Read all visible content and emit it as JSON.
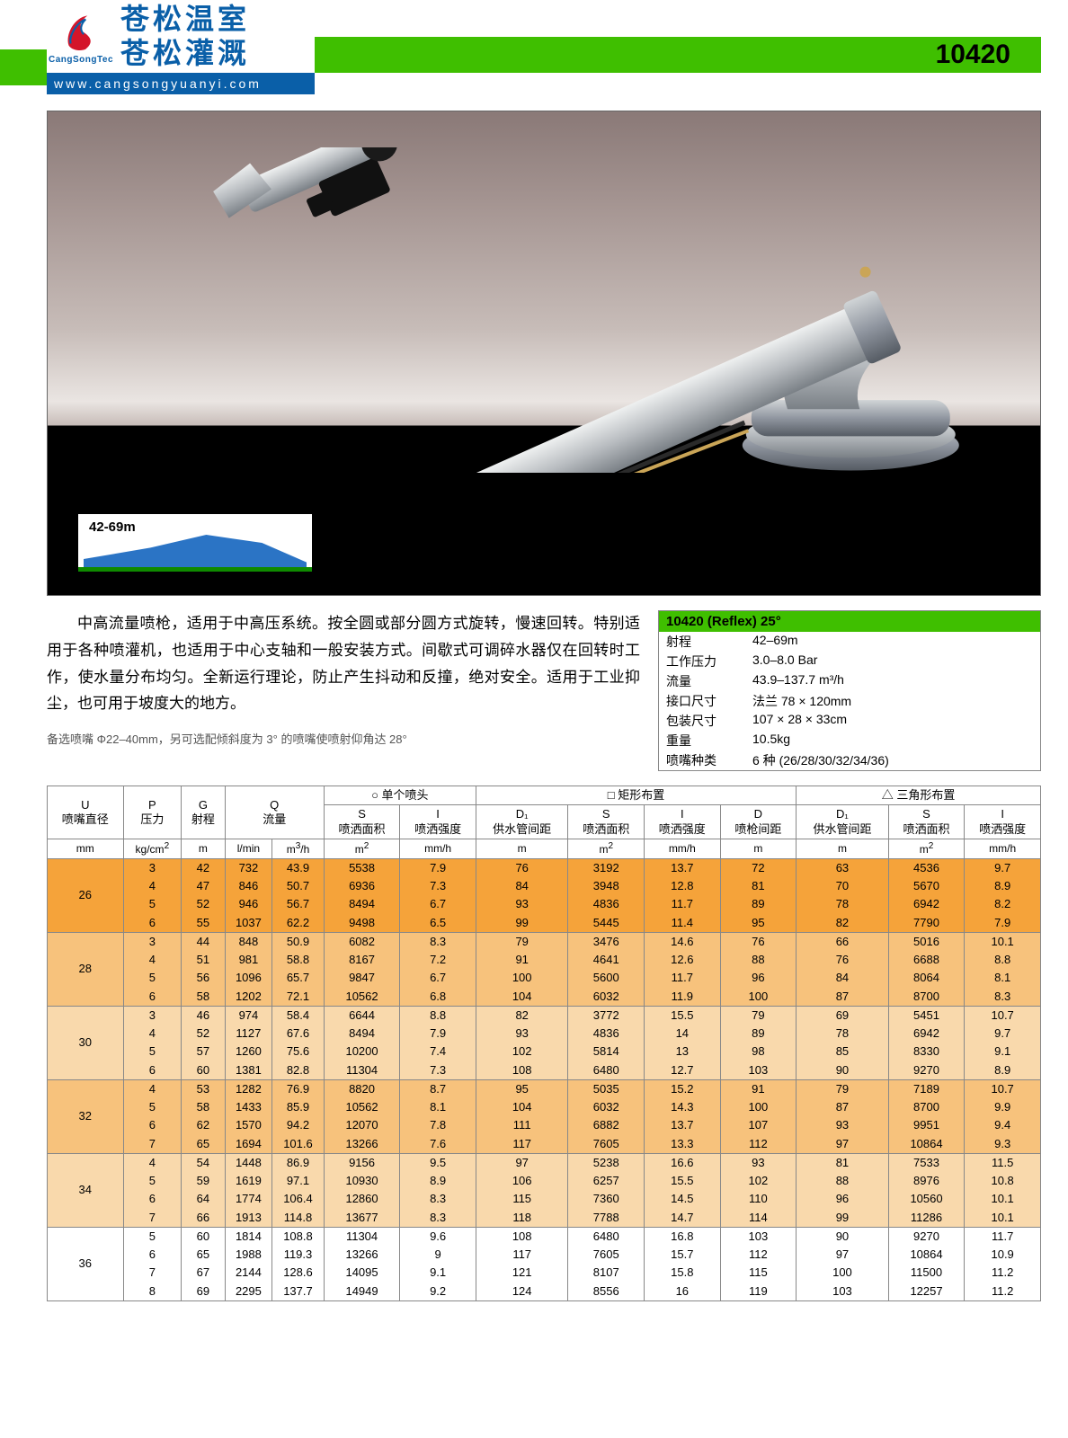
{
  "header": {
    "brand1": "苍松温室",
    "brand2": "苍松灌溉",
    "logo_tag": "CangSongTec",
    "url": "www.cangsongyuanyi.com",
    "model": "10420"
  },
  "spray_label": "42-69m",
  "description": "中高流量喷枪，适用于中高压系统。按全圆或部分圆方式旋转，慢速回转。特别适用于各种喷灌机，也适用于中心支轴和一般安装方式。间歇式可调碎水器仅在回转时工作，使水量分布均匀。全新运行理论，防止产生抖动和反撞，绝对安全。适用于工业抑尘，也可用于坡度大的地方。",
  "note": "备选喷嘴 Φ22–40mm，另可选配倾斜度为 3° 的喷嘴使喷射仰角达 28°",
  "spec": {
    "title": "10420 (Reflex) 25°",
    "rows": [
      {
        "lbl": "射程",
        "val": "42–69m"
      },
      {
        "lbl": "工作压力",
        "val": "3.0–8.0 Bar"
      },
      {
        "lbl": "流量",
        "val": "43.9–137.7 m³/h"
      },
      {
        "lbl": "接口尺寸",
        "val": "法兰 78 × 120mm"
      },
      {
        "lbl": "包装尺寸",
        "val": "107 × 28 × 33cm"
      },
      {
        "lbl": "重量",
        "val": "10.5kg"
      },
      {
        "lbl": "喷嘴种类",
        "val": "6 种 (26/28/30/32/34/36)"
      }
    ]
  },
  "table": {
    "group_headers": [
      "○ 单个喷头",
      "□ 矩形布置",
      "△ 三角形布置"
    ],
    "top_labels": {
      "U": "U",
      "U2": "喷嘴直径",
      "P": "P",
      "P2": "压力",
      "G": "G",
      "G2": "射程",
      "Q": "Q",
      "Q2": "流量",
      "S": "S",
      "S2": "喷洒面积",
      "I": "I",
      "I2": "喷洒强度",
      "D1": "D₁",
      "D1_2": "供水管间距",
      "D": "D",
      "D_2": "喷枪间距"
    },
    "units": [
      "mm",
      "kg/cm²",
      "m",
      "l/min",
      "m³/h",
      "m²",
      "mm/h",
      "m",
      "m²",
      "mm/h",
      "m",
      "m",
      "m²",
      "mm/h"
    ],
    "groups": [
      {
        "u": "26",
        "shade": "shade-a",
        "rows": [
          [
            3,
            42,
            732,
            43.9,
            5538,
            7.9,
            76,
            3192,
            13.7,
            72,
            63,
            4536,
            9.7
          ],
          [
            4,
            47,
            846,
            50.7,
            6936,
            7.3,
            84,
            3948,
            12.8,
            81,
            70,
            5670,
            8.9
          ],
          [
            5,
            52,
            946,
            56.7,
            8494,
            6.7,
            93,
            4836,
            11.7,
            89,
            78,
            6942,
            8.2
          ],
          [
            6,
            55,
            1037,
            62.2,
            9498,
            6.5,
            99,
            5445,
            11.4,
            95,
            82,
            7790,
            7.9
          ]
        ]
      },
      {
        "u": "28",
        "shade": "shade-b",
        "rows": [
          [
            3,
            44,
            848,
            50.9,
            6082,
            8.3,
            79,
            3476,
            14.6,
            76,
            66,
            5016,
            10.1
          ],
          [
            4,
            51,
            981,
            58.8,
            8167,
            7.2,
            91,
            4641,
            12.6,
            88,
            76,
            6688,
            8.8
          ],
          [
            5,
            56,
            1096,
            65.7,
            9847,
            6.7,
            100,
            5600,
            11.7,
            96,
            84,
            8064,
            8.1
          ],
          [
            6,
            58,
            1202,
            72.1,
            10562,
            6.8,
            104,
            6032,
            11.9,
            100,
            87,
            8700,
            8.3
          ]
        ]
      },
      {
        "u": "30",
        "shade": "shade-c",
        "rows": [
          [
            3,
            46,
            974,
            58.4,
            6644,
            8.8,
            82,
            3772,
            15.5,
            79,
            69,
            5451,
            10.7
          ],
          [
            4,
            52,
            1127,
            67.6,
            8494,
            7.9,
            93,
            4836,
            14.0,
            89,
            78,
            6942,
            9.7
          ],
          [
            5,
            57,
            1260,
            75.6,
            10200,
            7.4,
            102,
            5814,
            13.0,
            98,
            85,
            8330,
            9.1
          ],
          [
            6,
            60,
            1381,
            82.8,
            11304,
            7.3,
            108,
            6480,
            12.7,
            103,
            90,
            9270,
            8.9
          ]
        ]
      },
      {
        "u": "32",
        "shade": "shade-b",
        "rows": [
          [
            4,
            53,
            1282,
            76.9,
            8820,
            8.7,
            95,
            5035,
            15.2,
            91,
            79,
            7189,
            10.7
          ],
          [
            5,
            58,
            1433,
            85.9,
            10562,
            8.1,
            104,
            6032,
            14.3,
            100,
            87,
            8700,
            9.9
          ],
          [
            6,
            62,
            1570,
            94.2,
            12070,
            7.8,
            111,
            6882,
            13.7,
            107,
            93,
            9951,
            9.4
          ],
          [
            7,
            65,
            1694,
            101.6,
            13266,
            7.6,
            117,
            7605,
            13.3,
            112,
            97,
            10864,
            9.3
          ]
        ]
      },
      {
        "u": "34",
        "shade": "shade-c",
        "rows": [
          [
            4,
            54,
            1448,
            86.9,
            9156,
            9.5,
            97,
            5238,
            16.6,
            93,
            81,
            7533,
            11.5
          ],
          [
            5,
            59,
            1619,
            97.1,
            10930,
            8.9,
            106,
            6257,
            15.5,
            102,
            88,
            8976,
            10.8
          ],
          [
            6,
            64,
            1774,
            106.4,
            12860,
            8.3,
            115,
            7360,
            14.5,
            110,
            96,
            10560,
            10.1
          ],
          [
            7,
            66,
            1913,
            114.8,
            13677,
            8.3,
            118,
            7788,
            14.7,
            114,
            99,
            11286,
            10.1
          ]
        ]
      },
      {
        "u": "36",
        "shade": "",
        "rows": [
          [
            5,
            60,
            1814,
            108.8,
            11304,
            9.6,
            108,
            6480,
            16.8,
            103,
            90,
            9270,
            11.7
          ],
          [
            6,
            65,
            1988,
            119.3,
            13266,
            9.0,
            117,
            7605,
            15.7,
            112,
            97,
            10864,
            10.9
          ],
          [
            7,
            67,
            2144,
            128.6,
            14095,
            9.1,
            121,
            8107,
            15.8,
            115,
            100,
            11500,
            11.2
          ],
          [
            8,
            69,
            2295,
            137.7,
            14949,
            9.2,
            124,
            8556,
            16.0,
            119,
            103,
            12257,
            11.2
          ]
        ]
      }
    ]
  }
}
